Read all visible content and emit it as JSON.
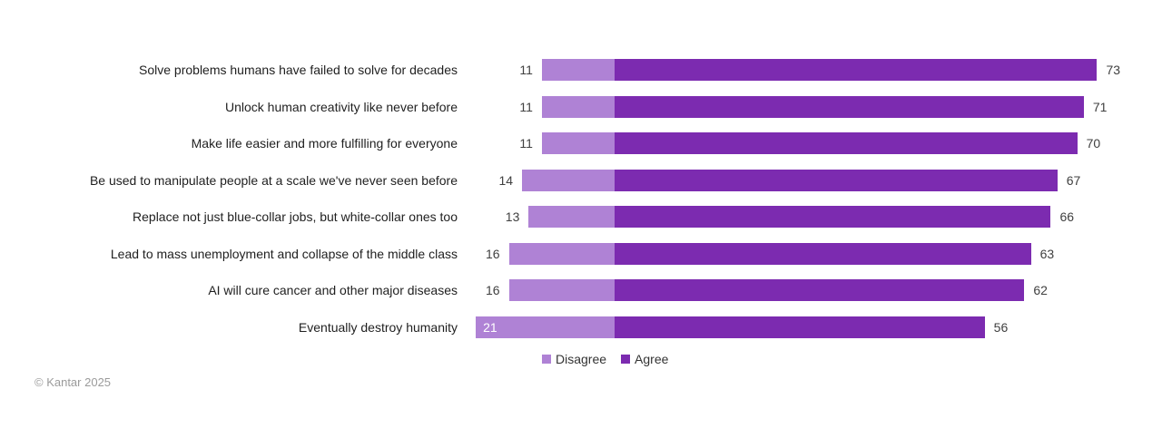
{
  "chart_data": {
    "type": "bar",
    "orientation": "horizontal",
    "categories": [
      "Solve problems humans have failed to solve for decades",
      "Unlock human creativity like never before",
      "Make life easier and more fulfilling for everyone",
      "Be used to manipulate people at a scale we've never seen before",
      "Replace not just blue-collar jobs, but white-collar ones too",
      "Lead to mass unemployment and collapse of the middle class",
      "AI will cure cancer and other major diseases",
      "Eventually destroy humanity"
    ],
    "series": [
      {
        "name": "Disagree",
        "color": "#af82d5",
        "values": [
          11,
          11,
          11,
          14,
          13,
          16,
          16,
          21
        ]
      },
      {
        "name": "Agree",
        "color": "#7c2bb0",
        "values": [
          73,
          71,
          70,
          67,
          66,
          63,
          62,
          56
        ]
      }
    ],
    "value_labels": "outside",
    "inside_label": {
      "row": 7,
      "series": 0
    },
    "legend_position": "bottom-center",
    "axes_hidden": true,
    "grid": false
  },
  "colors": {
    "category_text": "#1f1f1f",
    "value_text": "#404040",
    "inside_value_text": "#ffffff",
    "footer_text": "#9b9b9b",
    "background": "#ffffff"
  },
  "footer": {
    "copyright": "© Kantar 2025"
  }
}
